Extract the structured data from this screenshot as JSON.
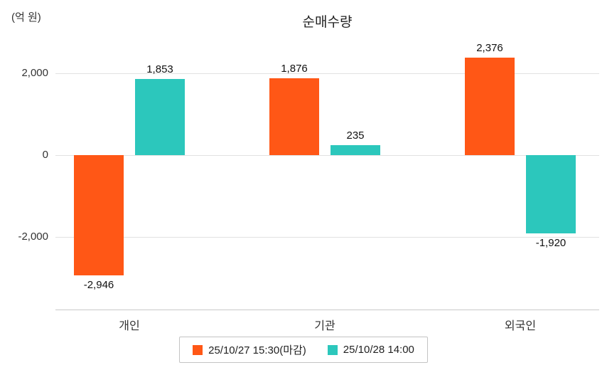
{
  "chart_data": {
    "type": "bar",
    "title": "순매수량",
    "ylabel": "(억 원)",
    "categories": [
      "개인",
      "기관",
      "외국인"
    ],
    "series": [
      {
        "name": "25/10/27 15:30(마감)",
        "color": "#ff5716",
        "values": [
          -2946,
          1876,
          2376
        ],
        "value_labels": [
          "-2,946",
          "1,876",
          "2,376"
        ]
      },
      {
        "name": "25/10/28 14:00",
        "color": "#2cc7bc",
        "values": [
          1853,
          235,
          -1920
        ],
        "value_labels": [
          "1,853",
          "235",
          "-1,920"
        ]
      }
    ],
    "yticks": [
      2000,
      0,
      -2000
    ],
    "ytick_labels": [
      "2,000",
      "0",
      "-2,000"
    ],
    "ylim": [
      -3400,
      2900
    ],
    "grid": true,
    "legend_position": "bottom"
  }
}
